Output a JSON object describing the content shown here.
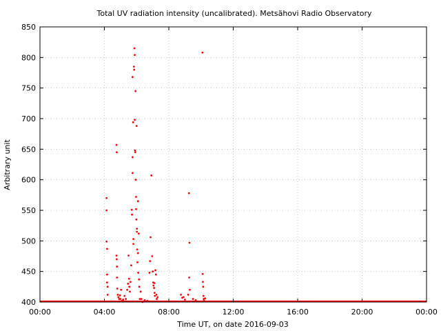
{
  "chart_data": {
    "type": "scatter",
    "title": "Total UV radiation intensity (uncalibrated). Metsähovi Radio Observatory",
    "xlabel": "Time UT, on date 2016-09-03",
    "ylabel": "Arbitrary unit",
    "xlim": [
      "00:00",
      "24:00"
    ],
    "ylim": [
      400,
      850
    ],
    "x_ticks": [
      "00:00",
      "04:00",
      "08:00",
      "12:00",
      "16:00",
      "20:00",
      "00:00"
    ],
    "y_ticks": [
      400,
      450,
      500,
      550,
      600,
      650,
      700,
      750,
      800,
      850
    ],
    "grid": true,
    "marker_color": "#ff0000",
    "baseline_value": 401,
    "points": [
      [
        "04:08",
        570
      ],
      [
        "04:08",
        550
      ],
      [
        "04:08",
        499
      ],
      [
        "04:10",
        487
      ],
      [
        "04:10",
        445
      ],
      [
        "04:10",
        432
      ],
      [
        "04:12",
        425
      ],
      [
        "04:12",
        412
      ],
      [
        "04:45",
        657
      ],
      [
        "04:46",
        645
      ],
      [
        "04:45",
        476
      ],
      [
        "04:46",
        470
      ],
      [
        "04:47",
        458
      ],
      [
        "04:47",
        440
      ],
      [
        "04:48",
        422
      ],
      [
        "04:50",
        412
      ],
      [
        "04:52",
        408
      ],
      [
        "04:55",
        405
      ],
      [
        "04:58",
        411
      ],
      [
        "05:00",
        405
      ],
      [
        "05:02",
        420
      ],
      [
        "05:05",
        402
      ],
      [
        "05:10",
        404
      ],
      [
        "05:15",
        410
      ],
      [
        "05:20",
        405
      ],
      [
        "05:25",
        420
      ],
      [
        "05:28",
        430
      ],
      [
        "05:30",
        476
      ],
      [
        "05:32",
        438
      ],
      [
        "05:33",
        425
      ],
      [
        "05:35",
        417
      ],
      [
        "05:37",
        433
      ],
      [
        "05:40",
        460
      ],
      [
        "05:42",
        551
      ],
      [
        "05:43",
        543
      ],
      [
        "05:45",
        768
      ],
      [
        "05:45",
        637
      ],
      [
        "05:45",
        611
      ],
      [
        "05:47",
        694
      ],
      [
        "05:48",
        503
      ],
      [
        "05:48",
        495
      ],
      [
        "05:50",
        785
      ],
      [
        "05:51",
        780
      ],
      [
        "05:52",
        815
      ],
      [
        "05:53",
        804
      ],
      [
        "05:53",
        698
      ],
      [
        "05:54",
        648
      ],
      [
        "05:55",
        645
      ],
      [
        "05:56",
        745
      ],
      [
        "05:57",
        600
      ],
      [
        "05:58",
        572
      ],
      [
        "05:58",
        552
      ],
      [
        "05:59",
        535
      ],
      [
        "06:00",
        688
      ],
      [
        "06:01",
        515
      ],
      [
        "06:01",
        520
      ],
      [
        "06:02",
        486
      ],
      [
        "06:03",
        465
      ],
      [
        "06:05",
        565
      ],
      [
        "06:05",
        480
      ],
      [
        "06:06",
        448
      ],
      [
        "06:08",
        512
      ],
      [
        "06:09",
        437
      ],
      [
        "06:10",
        425
      ],
      [
        "06:12",
        405
      ],
      [
        "06:15",
        417
      ],
      [
        "06:18",
        405
      ],
      [
        "06:22",
        400
      ],
      [
        "06:30",
        403
      ],
      [
        "06:40",
        402
      ],
      [
        "06:48",
        448
      ],
      [
        "06:50",
        467
      ],
      [
        "06:52",
        506
      ],
      [
        "06:55",
        607
      ],
      [
        "06:58",
        475
      ],
      [
        "07:00",
        450
      ],
      [
        "07:02",
        432
      ],
      [
        "07:03",
        427
      ],
      [
        "07:05",
        423
      ],
      [
        "07:06",
        431
      ],
      [
        "07:07",
        415
      ],
      [
        "07:08",
        410
      ],
      [
        "07:10",
        452
      ],
      [
        "07:12",
        445
      ],
      [
        "07:14",
        412
      ],
      [
        "07:15",
        405
      ],
      [
        "07:18",
        408
      ],
      [
        "08:45",
        412
      ],
      [
        "08:50",
        407
      ],
      [
        "08:55",
        408
      ],
      [
        "09:00",
        404
      ],
      [
        "09:12",
        412
      ],
      [
        "09:15",
        578
      ],
      [
        "09:16",
        440
      ],
      [
        "09:17",
        497
      ],
      [
        "09:18",
        420
      ],
      [
        "09:30",
        405
      ],
      [
        "09:40",
        403
      ],
      [
        "10:05",
        808
      ],
      [
        "10:06",
        446
      ],
      [
        "10:07",
        433
      ],
      [
        "10:08",
        425
      ],
      [
        "10:09",
        410
      ],
      [
        "10:10",
        405
      ],
      [
        "10:11",
        402
      ],
      [
        "10:15",
        406
      ]
    ]
  }
}
